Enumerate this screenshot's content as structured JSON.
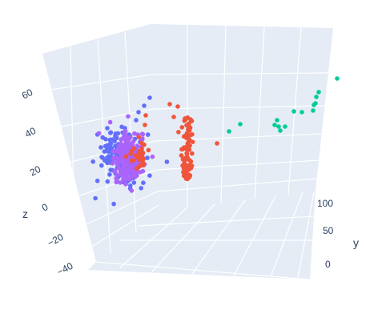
{
  "chart_data": {
    "type": "scatter3d",
    "title": "",
    "axes": {
      "z": {
        "label": "z",
        "ticks": [
          "60",
          "40",
          "20",
          "0",
          "−20",
          "−40"
        ]
      },
      "y": {
        "label": "y",
        "ticks": [
          "100",
          "50",
          "0"
        ]
      }
    },
    "background": "#e5ecf6",
    "grid": true,
    "legend": "none",
    "series": [
      {
        "color": "#636efa",
        "values": "dense cluster with outliers (left)"
      },
      {
        "color": "#ab63fa",
        "values": "dense core cluster (left)"
      },
      {
        "color": "#ef553b",
        "values": "vertical band (center) and sparse points"
      },
      {
        "color": "#00cc96",
        "values": "sparse trail (right)"
      }
    ]
  }
}
